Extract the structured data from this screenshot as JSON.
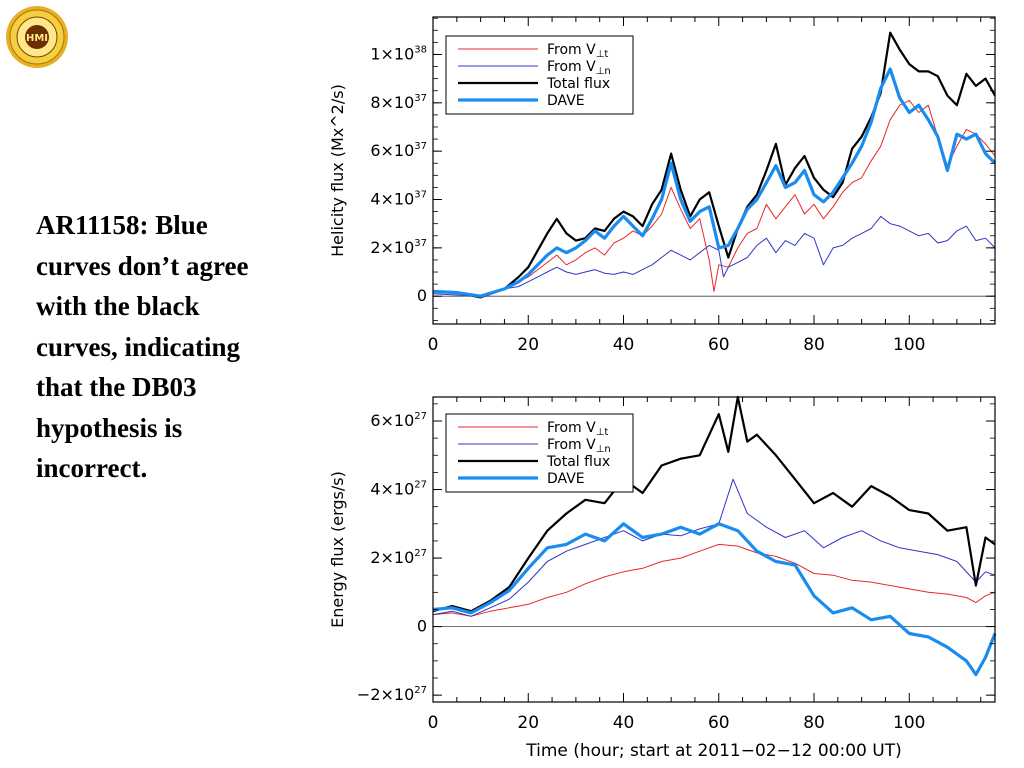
{
  "slide": {
    "caption": "AR11158: Blue curves don’t agree with the black curves, indicating that the DB03 hypothesis is incorrect.",
    "logo_text": "HMI"
  },
  "colors": {
    "red": "#e8282a",
    "purple": "#3036c4",
    "black": "#000000",
    "blue": "#1a8cf0"
  },
  "chart_data": [
    {
      "type": "line",
      "ylabel": "Helicity  flux  (Mx^2/s)",
      "xlabel": "",
      "xlim": [
        0,
        118
      ],
      "ylim": [
        -1.15e+37,
        1.155e+38
      ],
      "xticks": [
        0,
        20,
        40,
        60,
        80,
        100
      ],
      "yticks": [
        {
          "v": 1e+38,
          "m": "1×10",
          "e": "38"
        },
        {
          "v": 8e+37,
          "m": "8×10",
          "e": "37"
        },
        {
          "v": 6e+37,
          "m": "6×10",
          "e": "37"
        },
        {
          "v": 4e+37,
          "m": "4×10",
          "e": "37"
        },
        {
          "v": 2e+37,
          "m": "2×10",
          "e": "37"
        },
        {
          "v": 0,
          "m": "0",
          "e": ""
        }
      ],
      "zero_line": true,
      "legend": [
        {
          "main": "From V",
          "sub": "⊥t",
          "color": "#e8282a",
          "width": 1
        },
        {
          "main": "From V",
          "sub": "⊥n",
          "color": "#3036c4",
          "width": 1
        },
        {
          "main": "Total flux",
          "sub": "",
          "color": "#000000",
          "width": 2.2
        },
        {
          "main": "DAVE",
          "sub": "",
          "color": "#1a8cf0",
          "width": 3.2
        }
      ],
      "series": [
        {
          "name": "From V⊥t",
          "color": "#e8282a",
          "width": 1,
          "x": [
            0,
            5,
            10,
            15,
            18,
            20,
            22,
            24,
            26,
            28,
            30,
            32,
            34,
            36,
            38,
            40,
            42,
            44,
            46,
            48,
            50,
            52,
            54,
            56,
            58,
            59,
            60,
            62,
            64,
            66,
            68,
            70,
            72,
            74,
            76,
            78,
            80,
            82,
            84,
            86,
            88,
            90,
            92,
            94,
            96,
            98,
            100,
            102,
            104,
            106,
            108,
            110,
            112,
            114,
            116,
            118
          ],
          "y": [
            2e+36,
            1.5e+36,
            0.0,
            3e+36,
            6e+36,
            8e+36,
            1.1e+37,
            1.4e+37,
            1.7e+37,
            1.3e+37,
            1.5e+37,
            1.8e+37,
            2e+37,
            1.7e+37,
            2.2e+37,
            2.4e+37,
            2.7e+37,
            2.5e+37,
            2.9e+37,
            3.4e+37,
            4.5e+37,
            3.6e+37,
            2.8e+37,
            3.2e+37,
            1.5e+37,
            2e+36,
            1.3e+37,
            1.2e+37,
            2e+37,
            2.6e+37,
            2.8e+37,
            3.8e+37,
            3.2e+37,
            3.7e+37,
            4.2e+37,
            3.4e+37,
            3.8e+37,
            3.2e+37,
            3.7e+37,
            4.3e+37,
            4.7e+37,
            4.9e+37,
            5.6e+37,
            6.2e+37,
            7.3e+37,
            7.9e+37,
            8.1e+37,
            7.6e+37,
            7.9e+37,
            6.6e+37,
            5.4e+37,
            6.2e+37,
            6.9e+37,
            6.7e+37,
            6.3e+37,
            5.8e+37
          ]
        },
        {
          "name": "From V⊥n",
          "color": "#3036c4",
          "width": 1,
          "x": [
            0,
            5,
            10,
            15,
            18,
            20,
            22,
            24,
            26,
            28,
            30,
            32,
            34,
            36,
            38,
            40,
            42,
            44,
            46,
            48,
            50,
            52,
            54,
            56,
            58,
            60,
            61,
            62,
            64,
            66,
            68,
            70,
            72,
            74,
            76,
            78,
            80,
            82,
            84,
            86,
            88,
            90,
            92,
            94,
            96,
            98,
            100,
            102,
            104,
            106,
            108,
            110,
            112,
            114,
            116,
            118
          ],
          "y": [
            1e+36,
            5e+35,
            0.0,
            3e+36,
            4e+36,
            6e+36,
            8e+36,
            1e+37,
            1.2e+37,
            1e+37,
            9e+36,
            1e+37,
            1.1e+37,
            9.5e+36,
            9e+36,
            1e+37,
            9e+36,
            1.1e+37,
            1.3e+37,
            1.6e+37,
            1.9e+37,
            1.7e+37,
            1.5e+37,
            1.8e+37,
            2.1e+37,
            1.9e+37,
            8e+36,
            1.2e+37,
            1.4e+37,
            1.6e+37,
            2.1e+37,
            2.4e+37,
            1.8e+37,
            2.3e+37,
            2.1e+37,
            2.6e+37,
            2.4e+37,
            1.3e+37,
            2e+37,
            2.1e+37,
            2.4e+37,
            2.6e+37,
            2.8e+37,
            3.3e+37,
            3e+37,
            2.9e+37,
            2.7e+37,
            2.5e+37,
            2.6e+37,
            2.2e+37,
            2.3e+37,
            2.7e+37,
            2.9e+37,
            2.3e+37,
            2.4e+37,
            2e+37
          ]
        },
        {
          "name": "Total flux",
          "color": "#000000",
          "width": 2.2,
          "x": [
            0,
            5,
            10,
            15,
            18,
            20,
            22,
            24,
            26,
            28,
            30,
            32,
            34,
            36,
            38,
            40,
            42,
            44,
            46,
            48,
            50,
            52,
            54,
            56,
            58,
            60,
            62,
            64,
            66,
            68,
            70,
            72,
            74,
            76,
            78,
            80,
            82,
            84,
            86,
            88,
            90,
            92,
            94,
            96,
            98,
            100,
            102,
            104,
            106,
            108,
            110,
            112,
            114,
            116,
            118
          ],
          "y": [
            2e+36,
            1.5e+36,
            -5e+35,
            3e+36,
            8e+36,
            1.2e+37,
            1.9e+37,
            2.6e+37,
            3.2e+37,
            2.6e+37,
            2.3e+37,
            2.4e+37,
            2.8e+37,
            2.7e+37,
            3.2e+37,
            3.5e+37,
            3.3e+37,
            2.9e+37,
            3.8e+37,
            4.4e+37,
            5.9e+37,
            4.4e+37,
            3.3e+37,
            4e+37,
            4.3e+37,
            2.9e+37,
            1.6e+37,
            2.8e+37,
            3.7e+37,
            4.2e+37,
            5.2e+37,
            6.3e+37,
            4.6e+37,
            5.3e+37,
            5.8e+37,
            4.9e+37,
            4.4e+37,
            4.1e+37,
            4.7e+37,
            6.1e+37,
            6.6e+37,
            7.4e+37,
            8.4e+37,
            1.09e+38,
            1.02e+38,
            9.6e+37,
            9.3e+37,
            9.3e+37,
            9.1e+37,
            8.3e+37,
            7.9e+37,
            9.2e+37,
            8.7e+37,
            9e+37,
            8.3e+37
          ]
        },
        {
          "name": "DAVE",
          "color": "#1a8cf0",
          "width": 3.2,
          "x": [
            0,
            5,
            10,
            15,
            18,
            20,
            22,
            24,
            26,
            28,
            30,
            32,
            34,
            36,
            38,
            40,
            42,
            44,
            46,
            48,
            50,
            52,
            54,
            56,
            58,
            60,
            62,
            64,
            66,
            68,
            70,
            72,
            74,
            76,
            78,
            80,
            82,
            84,
            86,
            88,
            90,
            92,
            94,
            96,
            98,
            100,
            102,
            104,
            106,
            108,
            110,
            112,
            114,
            116,
            118
          ],
          "y": [
            2e+36,
            1.5e+36,
            0.0,
            3e+36,
            6e+36,
            9e+36,
            1.3e+37,
            1.7e+37,
            2e+37,
            1.8e+37,
            2e+37,
            2.3e+37,
            2.7e+37,
            2.4e+37,
            2.9e+37,
            3.3e+37,
            2.9e+37,
            2.5e+37,
            3.2e+37,
            4e+37,
            5.5e+37,
            4e+37,
            3.1e+37,
            3.5e+37,
            3.7e+37,
            2e+37,
            2.1e+37,
            2.8e+37,
            3.6e+37,
            4e+37,
            4.7e+37,
            5.4e+37,
            4.5e+37,
            4.7e+37,
            5.2e+37,
            4.2e+37,
            3.9e+37,
            4.3e+37,
            4.9e+37,
            5.5e+37,
            6.2e+37,
            7.2e+37,
            8.6e+37,
            9.4e+37,
            8.2e+37,
            7.6e+37,
            7.9e+37,
            7.3e+37,
            6.6e+37,
            5.2e+37,
            6.7e+37,
            6.5e+37,
            6.7e+37,
            5.9e+37,
            5.5e+37
          ]
        }
      ]
    },
    {
      "type": "line",
      "ylabel": "Energy  flux  (ergs/s)",
      "xlabel": "Time  (hour;  start  at  2011−02−12  00:00  UT)",
      "xlim": [
        0,
        118
      ],
      "ylim": [
        -2.2e+27,
        6.7e+27
      ],
      "xticks": [
        0,
        20,
        40,
        60,
        80,
        100
      ],
      "yticks": [
        {
          "v": 6e+27,
          "m": "6×10",
          "e": "27"
        },
        {
          "v": 4e+27,
          "m": "4×10",
          "e": "27"
        },
        {
          "v": 2e+27,
          "m": "2×10",
          "e": "27"
        },
        {
          "v": 0,
          "m": "0",
          "e": ""
        },
        {
          "v": -2e+27,
          "m": "−2×10",
          "e": "27"
        }
      ],
      "zero_line": true,
      "legend": [
        {
          "main": "From V",
          "sub": "⊥t",
          "color": "#e8282a",
          "width": 1
        },
        {
          "main": "From V",
          "sub": "⊥n",
          "color": "#3036c4",
          "width": 1
        },
        {
          "main": "Total flux",
          "sub": "",
          "color": "#000000",
          "width": 2.2
        },
        {
          "main": "DAVE",
          "sub": "",
          "color": "#1a8cf0",
          "width": 3.2
        }
      ],
      "series": [
        {
          "name": "From V⊥t",
          "color": "#e8282a",
          "width": 1,
          "x": [
            0,
            4,
            8,
            12,
            16,
            20,
            24,
            28,
            32,
            36,
            40,
            44,
            48,
            52,
            56,
            60,
            64,
            68,
            72,
            76,
            80,
            84,
            88,
            92,
            96,
            100,
            104,
            108,
            112,
            114,
            116,
            118
          ],
          "y": [
            3.5e+26,
            4e+26,
            3e+26,
            4.5e+26,
            5.5e+26,
            6.5e+26,
            8.5e+26,
            1e+27,
            1.25e+27,
            1.45e+27,
            1.6e+27,
            1.7e+27,
            1.9e+27,
            2e+27,
            2.2e+27,
            2.4e+27,
            2.35e+27,
            2.15e+27,
            2.05e+27,
            1.85e+27,
            1.55e+27,
            1.5e+27,
            1.35e+27,
            1.3e+27,
            1.2e+27,
            1.1e+27,
            1e+27,
            9.5e+26,
            8.5e+26,
            7e+26,
            9e+26,
            1e+27
          ]
        },
        {
          "name": "From V⊥n",
          "color": "#3036c4",
          "width": 1,
          "x": [
            0,
            4,
            8,
            12,
            16,
            20,
            24,
            28,
            32,
            36,
            40,
            44,
            48,
            52,
            56,
            60,
            63,
            66,
            70,
            74,
            78,
            82,
            86,
            90,
            94,
            98,
            102,
            106,
            110,
            114,
            116,
            118
          ],
          "y": [
            3.5e+26,
            4.5e+26,
            3e+26,
            5.5e+26,
            8e+26,
            1.3e+27,
            1.9e+27,
            2.2e+27,
            2.4e+27,
            2.6e+27,
            2.8e+27,
            2.5e+27,
            2.7e+27,
            2.65e+27,
            2.85e+27,
            3e+27,
            4.3e+27,
            3.3e+27,
            2.9e+27,
            2.6e+27,
            2.8e+27,
            2.3e+27,
            2.6e+27,
            2.8e+27,
            2.5e+27,
            2.3e+27,
            2.2e+27,
            2.1e+27,
            1.9e+27,
            1.3e+27,
            1.6e+27,
            1.5e+27
          ]
        },
        {
          "name": "Total flux",
          "color": "#000000",
          "width": 2.2,
          "x": [
            0,
            4,
            8,
            12,
            16,
            20,
            24,
            28,
            32,
            36,
            40,
            44,
            48,
            52,
            56,
            60,
            62,
            64,
            66,
            68,
            72,
            76,
            80,
            84,
            88,
            92,
            96,
            100,
            104,
            108,
            112,
            114,
            116,
            118
          ],
          "y": [
            4.5e+26,
            6e+26,
            4.5e+26,
            7.5e+26,
            1.15e+27,
            2e+27,
            2.8e+27,
            3.3e+27,
            3.7e+27,
            3.6e+27,
            4.3e+27,
            3.9e+27,
            4.7e+27,
            4.9e+27,
            5e+27,
            6.2e+27,
            5.1e+27,
            6.7e+27,
            5.4e+27,
            5.6e+27,
            5e+27,
            4.3e+27,
            3.6e+27,
            3.9e+27,
            3.5e+27,
            4.1e+27,
            3.8e+27,
            3.4e+27,
            3.3e+27,
            2.8e+27,
            2.9e+27,
            1.2e+27,
            2.6e+27,
            2.4e+27
          ]
        },
        {
          "name": "DAVE",
          "color": "#1a8cf0",
          "width": 3.2,
          "x": [
            0,
            4,
            8,
            12,
            16,
            20,
            24,
            28,
            32,
            36,
            40,
            44,
            48,
            52,
            56,
            60,
            64,
            68,
            72,
            76,
            80,
            84,
            88,
            92,
            96,
            100,
            104,
            108,
            112,
            114,
            116,
            118
          ],
          "y": [
            5e+26,
            5.5e+26,
            4e+26,
            7e+26,
            1.05e+27,
            1.7e+27,
            2.3e+27,
            2.4e+27,
            2.7e+27,
            2.5e+27,
            3e+27,
            2.6e+27,
            2.7e+27,
            2.9e+27,
            2.7e+27,
            3e+27,
            2.8e+27,
            2.2e+27,
            1.9e+27,
            1.8e+27,
            9e+26,
            4e+26,
            5.5e+26,
            2e+26,
            3e+26,
            -2e+26,
            -3e+26,
            -6e+26,
            -1e+27,
            -1.4e+27,
            -9e+26,
            -2e+26
          ]
        }
      ]
    }
  ]
}
